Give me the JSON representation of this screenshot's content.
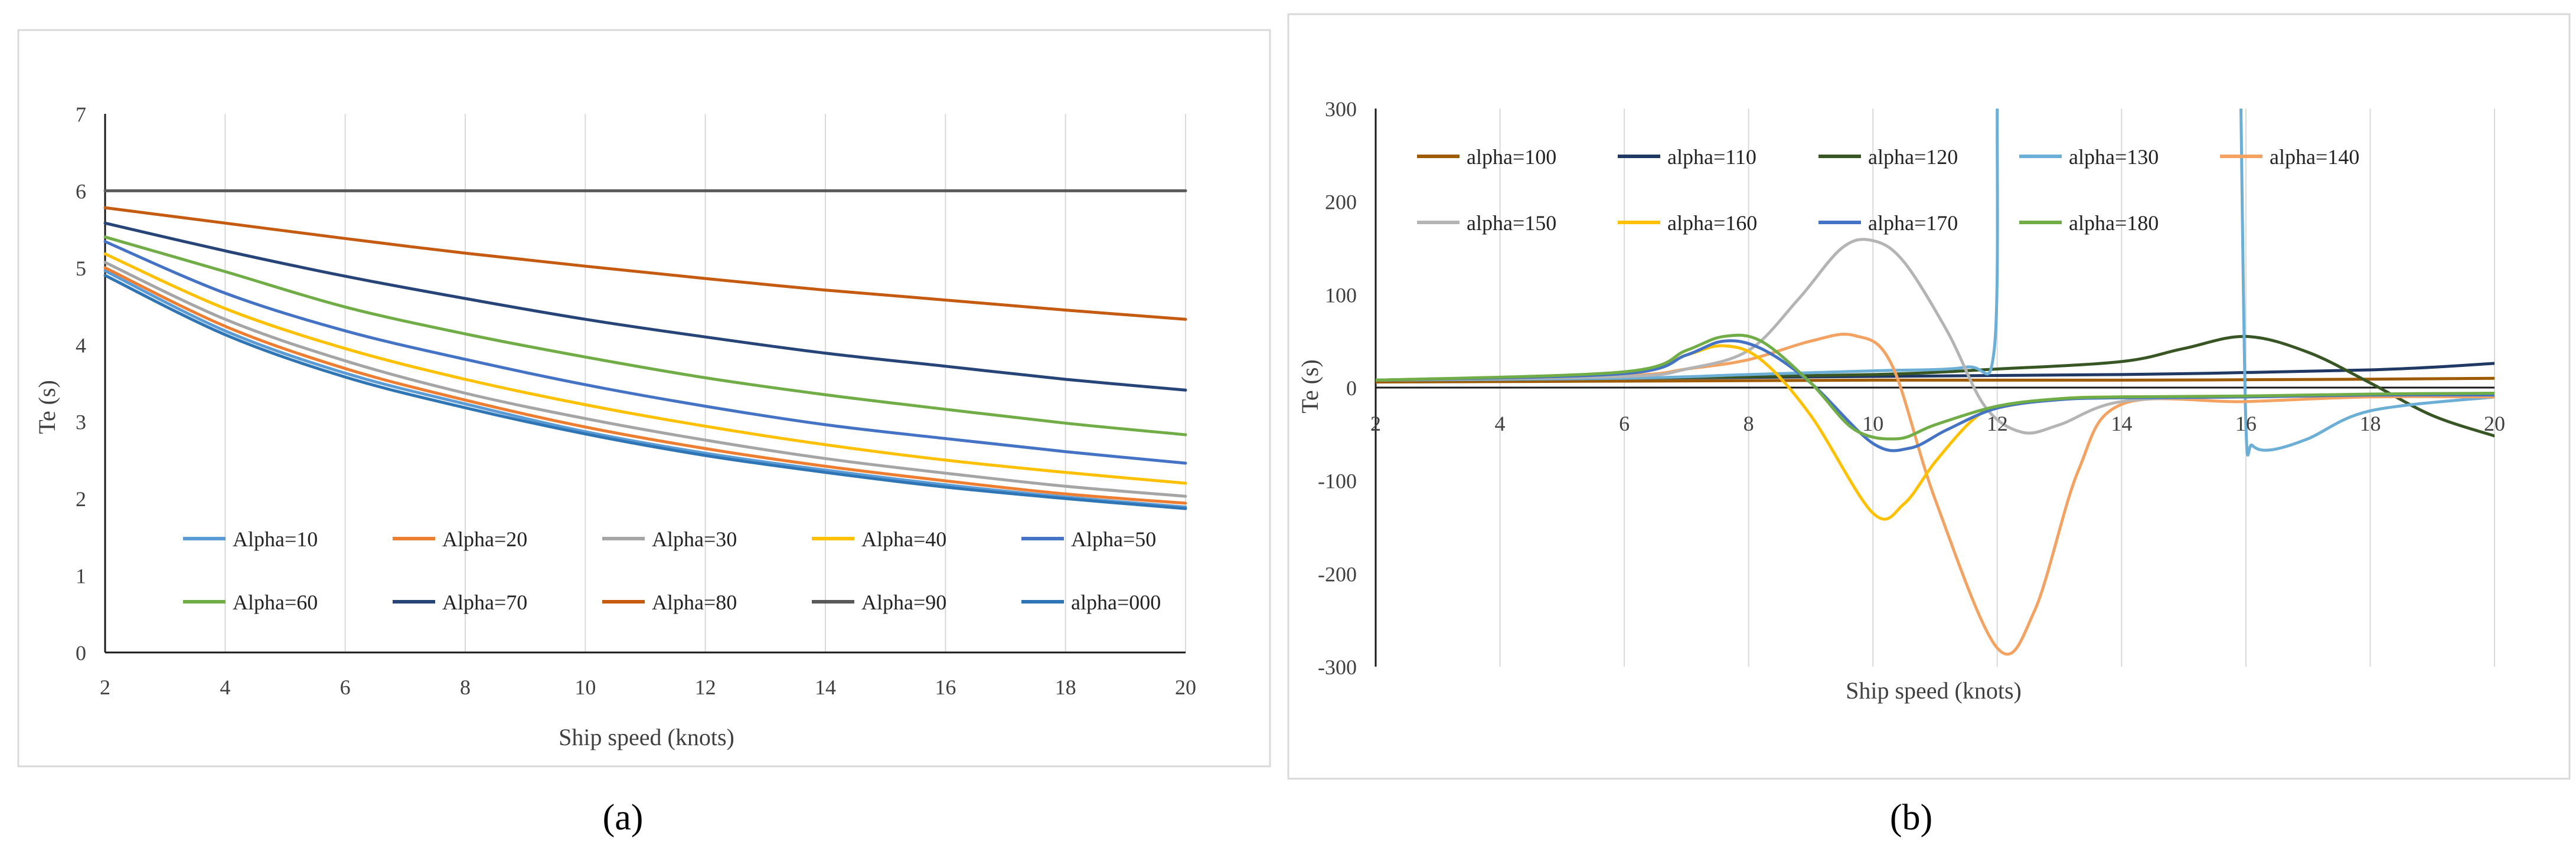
{
  "chart_data": [
    {
      "type": "line",
      "panel_label": "(a)",
      "xlabel": "Ship speed  (knots)",
      "ylabel": "Te (s)",
      "xlim": [
        2,
        20
      ],
      "ylim": [
        0,
        7
      ],
      "xticks": [
        2,
        4,
        6,
        8,
        10,
        12,
        14,
        16,
        18,
        20
      ],
      "yticks": [
        0,
        1,
        2,
        3,
        4,
        5,
        6,
        7
      ],
      "grid": "vertical",
      "legend_position": "bottom-inside",
      "x": [
        2,
        4,
        6,
        8,
        10,
        12,
        14,
        16,
        18,
        20
      ],
      "series": [
        {
          "name": "Alpha=10",
          "color": "#5B9BD5",
          "values": [
            4.96,
            4.18,
            3.63,
            3.23,
            2.87,
            2.59,
            2.37,
            2.18,
            2.02,
            1.89
          ]
        },
        {
          "name": "Alpha=20",
          "color": "#ED7D31",
          "values": [
            5.0,
            4.24,
            3.69,
            3.28,
            2.93,
            2.65,
            2.42,
            2.23,
            2.06,
            1.94
          ]
        },
        {
          "name": "Alpha=30",
          "color": "#A5A5A5",
          "values": [
            5.07,
            4.33,
            3.79,
            3.37,
            3.04,
            2.76,
            2.52,
            2.33,
            2.16,
            2.03
          ]
        },
        {
          "name": "Alpha=40",
          "color": "#FFC000",
          "values": [
            5.18,
            4.47,
            3.95,
            3.55,
            3.22,
            2.94,
            2.7,
            2.5,
            2.34,
            2.2
          ]
        },
        {
          "name": "Alpha=50",
          "color": "#4472C4",
          "values": [
            5.34,
            4.67,
            4.18,
            3.81,
            3.48,
            3.2,
            2.96,
            2.78,
            2.61,
            2.46
          ]
        },
        {
          "name": "Alpha=60",
          "color": "#70AD47",
          "values": [
            5.4,
            4.95,
            4.49,
            4.14,
            3.84,
            3.57,
            3.35,
            3.16,
            2.98,
            2.83
          ]
        },
        {
          "name": "Alpha=70",
          "color": "#264478",
          "values": [
            5.58,
            5.22,
            4.89,
            4.6,
            4.33,
            4.1,
            3.89,
            3.72,
            3.55,
            3.41
          ]
        },
        {
          "name": "Alpha=80",
          "color": "#C55A11",
          "values": [
            5.78,
            5.58,
            5.38,
            5.19,
            5.02,
            4.86,
            4.71,
            4.58,
            4.45,
            4.33
          ]
        },
        {
          "name": "Alpha=90",
          "color": "#595959",
          "values": [
            6.0,
            6.0,
            6.0,
            6.0,
            6.0,
            6.0,
            6.0,
            6.0,
            6.0,
            6.0
          ]
        },
        {
          "name": "alpha=000",
          "color": "#2E75B6",
          "values": [
            4.9,
            4.13,
            3.58,
            3.18,
            2.84,
            2.56,
            2.34,
            2.15,
            2.0,
            1.87
          ]
        }
      ]
    },
    {
      "type": "line",
      "panel_label": "(b)",
      "xlabel": "Ship speed  (knots)",
      "ylabel": "Te (s)",
      "xlim": [
        2,
        20
      ],
      "ylim": [
        -300,
        300
      ],
      "xticks": [
        2,
        4,
        6,
        8,
        10,
        12,
        14,
        16,
        18,
        20
      ],
      "yticks": [
        -300,
        -200,
        -100,
        0,
        100,
        200,
        300
      ],
      "grid": "vertical",
      "legend_position": "top-inside",
      "series": [
        {
          "name": "alpha=100",
          "color": "#9E5A00",
          "x": [
            2,
            6,
            10,
            14,
            18,
            20
          ],
          "values": [
            6,
            7,
            8,
            8,
            9,
            10
          ]
        },
        {
          "name": "alpha=110",
          "color": "#1F3864",
          "x": [
            2,
            6,
            10,
            14,
            18,
            20
          ],
          "values": [
            8,
            10,
            12,
            14,
            19,
            26
          ]
        },
        {
          "name": "alpha=120",
          "color": "#375623",
          "x": [
            2,
            6,
            10,
            12,
            14,
            15,
            16,
            17,
            18,
            19,
            20
          ],
          "values": [
            8,
            10,
            14,
            20,
            28,
            42,
            55,
            38,
            5,
            -30,
            -52
          ]
        },
        {
          "name": "alpha=130",
          "color": "#6BAED6",
          "x": [
            2,
            6,
            8,
            10,
            11.5,
            11.95,
            12.0,
            12.05,
            15.8,
            15.92,
            16.0,
            16.1,
            16.4,
            17,
            18,
            20
          ],
          "values": [
            8,
            10,
            14,
            18,
            22,
            40,
            300,
            null,
            null,
            300,
            -40,
            -62,
            -67,
            -55,
            -25,
            -10
          ]
        },
        {
          "name": "alpha=140",
          "color": "#F4A261",
          "x": [
            2,
            6,
            7,
            8,
            9,
            9.7,
            10.3,
            11,
            12,
            12.6,
            13.3,
            14,
            16,
            18,
            20
          ],
          "values": [
            8,
            13,
            20,
            30,
            50,
            56,
            25,
            -120,
            -280,
            -240,
            -90,
            -18,
            -15,
            -10,
            -10
          ]
        },
        {
          "name": "alpha=150",
          "color": "#B4B4B4",
          "x": [
            2,
            6,
            7,
            8,
            8.8,
            9.5,
            10,
            10.5,
            11.2,
            11.8,
            12.4,
            13,
            14,
            16,
            18,
            20
          ],
          "values": [
            8,
            12,
            20,
            40,
            95,
            150,
            158,
            135,
            60,
            -20,
            -48,
            -40,
            -15,
            -10,
            -8,
            -8
          ]
        },
        {
          "name": "alpha=160",
          "color": "#FFC000",
          "x": [
            2,
            6,
            7,
            7.6,
            8.2,
            9,
            10,
            10.5,
            11,
            11.6,
            12,
            13,
            14,
            16,
            18,
            20
          ],
          "values": [
            8,
            15,
            35,
            45,
            30,
            -30,
            -135,
            -125,
            -80,
            -35,
            -22,
            -12,
            -10,
            -10,
            -8,
            -8
          ]
        },
        {
          "name": "alpha=170",
          "color": "#4472C4",
          "x": [
            2,
            6,
            7,
            7.6,
            8.2,
            9,
            10,
            10.6,
            11.2,
            12,
            13,
            14,
            16,
            18,
            20
          ],
          "values": [
            8,
            15,
            35,
            50,
            42,
            5,
            -60,
            -65,
            -45,
            -22,
            -13,
            -11,
            -10,
            -8,
            -8
          ]
        },
        {
          "name": "alpha=180",
          "color": "#70AD47",
          "x": [
            2,
            6,
            7,
            7.6,
            8.2,
            9,
            9.7,
            10.4,
            11,
            12,
            13,
            14,
            16,
            18,
            20
          ],
          "values": [
            8,
            17,
            40,
            55,
            50,
            5,
            -45,
            -55,
            -40,
            -20,
            -12,
            -10,
            -9,
            -7,
            -6
          ]
        }
      ]
    }
  ]
}
